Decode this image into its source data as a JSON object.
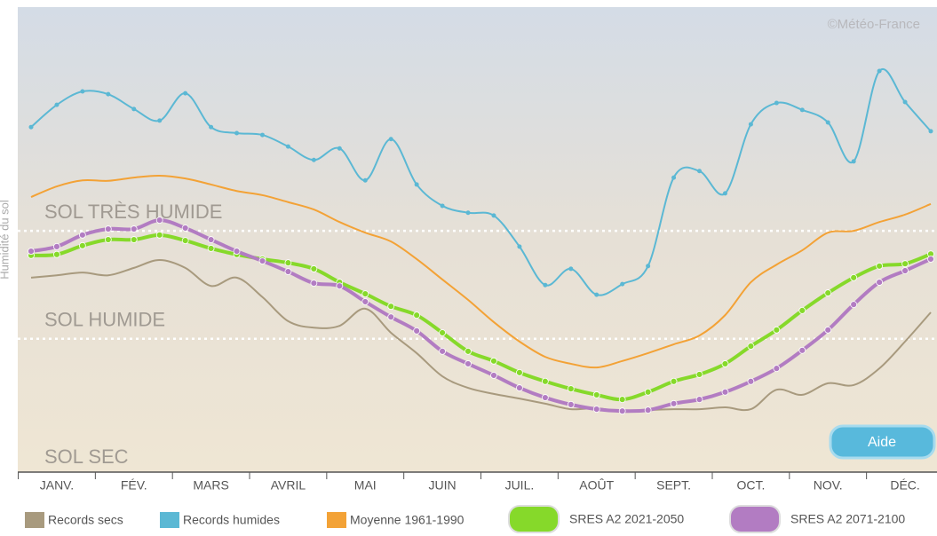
{
  "chart_data": {
    "type": "line",
    "credit": "©Météo-France",
    "y_label": "Humidité du sol",
    "button": "Aide",
    "zones": [
      {
        "value": 51.7,
        "label": "SOL TRÈS HUMIDE"
      },
      {
        "value": 28.4,
        "label": "SOL HUMIDE"
      },
      {
        "value": 0,
        "label": "SOL SEC"
      }
    ],
    "x": [
      0,
      1,
      2,
      3,
      4,
      5,
      6,
      7,
      8,
      9,
      10,
      11,
      12,
      13,
      14,
      15,
      16,
      17,
      18,
      19,
      20,
      21,
      22,
      23,
      24,
      25,
      26,
      27,
      28,
      29,
      30,
      31,
      32,
      33,
      34,
      35
    ],
    "xlim": [
      0,
      35
    ],
    "xticks": [
      {
        "value": 1,
        "label": "JANV."
      },
      {
        "value": 4,
        "label": "FÉV."
      },
      {
        "value": 7,
        "label": "MARS"
      },
      {
        "value": 10,
        "label": "AVRIL"
      },
      {
        "value": 13,
        "label": "MAI"
      },
      {
        "value": 16,
        "label": "JUIN"
      },
      {
        "value": 19,
        "label": "JUIL."
      },
      {
        "value": 22,
        "label": "AOÛT"
      },
      {
        "value": 25,
        "label": "SEPT."
      },
      {
        "value": 28,
        "label": "OCT."
      },
      {
        "value": 31,
        "label": "NOV."
      },
      {
        "value": 34,
        "label": "DÉC."
      }
    ],
    "ylim": [
      0,
      100
    ],
    "series": [
      {
        "name": "Records secs",
        "color": "#a89a7e",
        "markers": false,
        "values": [
          41.6,
          42.1,
          42.7,
          42.1,
          43.7,
          45.4,
          43.7,
          39.8,
          41.6,
          37.4,
          32.2,
          30.8,
          31.2,
          34.9,
          29.7,
          25.3,
          20.3,
          17.8,
          16.5,
          15.5,
          14.4,
          13.2,
          13.4,
          12.6,
          13.0,
          13.2,
          13.2,
          13.6,
          13.2,
          17.4,
          16.3,
          18.8,
          18.4,
          22.0,
          27.8,
          34.1
        ]
      },
      {
        "name": "Records humides",
        "color": "#5bb8d4",
        "markers": true,
        "values": [
          74.1,
          78.9,
          81.8,
          81.2,
          78.0,
          75.5,
          81.4,
          74.1,
          72.8,
          72.4,
          69.9,
          67.0,
          69.5,
          62.6,
          71.5,
          61.7,
          57.1,
          55.6,
          55.0,
          48.3,
          40.0,
          43.5,
          37.9,
          40.2,
          44.1,
          63.2,
          64.6,
          59.8,
          74.7,
          79.3,
          77.8,
          75.1,
          66.7,
          86.2,
          79.5,
          73.2
        ]
      },
      {
        "name": "Moyenne 1961-1990",
        "color": "#f3a236",
        "markers": false,
        "values": [
          59.0,
          61.3,
          62.6,
          62.5,
          63.2,
          63.6,
          63.0,
          61.7,
          60.3,
          59.4,
          57.9,
          56.3,
          53.6,
          51.3,
          49.4,
          45.6,
          41.2,
          36.8,
          32.0,
          27.8,
          24.5,
          23.0,
          22.2,
          23.6,
          25.3,
          27.2,
          29.1,
          33.5,
          40.6,
          44.4,
          47.5,
          51.3,
          51.7,
          53.6,
          55.2,
          57.5
        ]
      },
      {
        "name": "SRES A2 2021-2050",
        "color": "#86d92a",
        "markers": true,
        "values": [
          46.4,
          46.6,
          48.5,
          49.8,
          49.8,
          50.8,
          49.6,
          47.9,
          46.6,
          45.6,
          44.8,
          43.5,
          40.6,
          38.1,
          35.4,
          33.5,
          29.7,
          25.7,
          23.6,
          21.1,
          19.2,
          17.6,
          16.3,
          15.3,
          16.9,
          19.2,
          20.7,
          23.0,
          26.8,
          30.3,
          34.5,
          38.3,
          41.6,
          44.1,
          44.6,
          46.7
        ]
      },
      {
        "name": "SRES A2 2071-2100",
        "color": "#b27cc2",
        "markers": true,
        "values": [
          47.3,
          48.3,
          50.8,
          52.1,
          52.1,
          54.0,
          52.3,
          49.8,
          47.3,
          45.2,
          42.9,
          40.4,
          39.8,
          36.4,
          33.1,
          30.1,
          25.7,
          23.0,
          20.5,
          17.8,
          15.7,
          14.2,
          13.2,
          12.8,
          13.0,
          14.4,
          15.3,
          16.9,
          19.2,
          22.0,
          25.9,
          30.3,
          35.8,
          40.6,
          43.1,
          45.6
        ]
      }
    ]
  }
}
